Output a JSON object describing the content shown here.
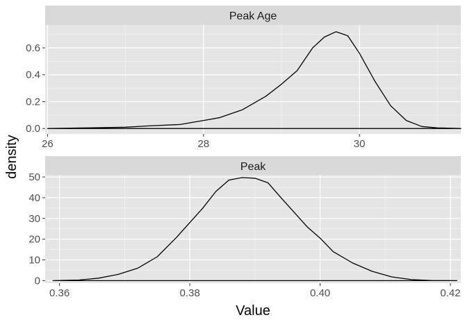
{
  "chart_data": {
    "type": "area",
    "xlabel": "Value",
    "ylabel": "density",
    "facets": [
      {
        "title": "Peak Age",
        "xlim": [
          25.97,
          31.3
        ],
        "ylim": [
          -0.04,
          0.77
        ],
        "x_ticks": [
          26,
          28,
          30
        ],
        "x_tick_labels": [
          "26",
          "28",
          "30"
        ],
        "y_ticks": [
          0.0,
          0.2,
          0.4,
          0.6
        ],
        "y_tick_labels": [
          "0.0",
          "0.2",
          "0.4",
          "0.6"
        ],
        "curve": {
          "x": [
            26.0,
            26.5,
            27.0,
            27.3,
            27.7,
            28.0,
            28.2,
            28.5,
            28.8,
            29.0,
            29.2,
            29.4,
            29.55,
            29.7,
            29.85,
            30.0,
            30.2,
            30.4,
            30.6,
            30.8,
            31.0,
            31.3
          ],
          "y": [
            0.0,
            0.005,
            0.01,
            0.02,
            0.03,
            0.06,
            0.08,
            0.14,
            0.24,
            0.33,
            0.43,
            0.6,
            0.68,
            0.72,
            0.69,
            0.56,
            0.35,
            0.17,
            0.06,
            0.015,
            0.005,
            0.0
          ]
        }
      },
      {
        "title": "Peak",
        "xlim": [
          0.3578,
          0.4216
        ],
        "ylim": [
          -1.2,
          51.0
        ],
        "x_ticks": [
          0.36,
          0.38,
          0.4,
          0.42
        ],
        "x_tick_labels": [
          "0.36",
          "0.38",
          "0.40",
          "0.42"
        ],
        "y_ticks": [
          0,
          10,
          20,
          30,
          40,
          50
        ],
        "y_tick_labels": [
          "0",
          "10",
          "20",
          "30",
          "40",
          "50"
        ],
        "curve": {
          "x": [
            0.359,
            0.363,
            0.366,
            0.369,
            0.372,
            0.375,
            0.378,
            0.38,
            0.382,
            0.384,
            0.386,
            0.388,
            0.39,
            0.392,
            0.394,
            0.396,
            0.398,
            0.4,
            0.402,
            0.405,
            0.408,
            0.411,
            0.414,
            0.417,
            0.421
          ],
          "y": [
            0.0,
            0.3,
            1.2,
            3.0,
            6.0,
            11.5,
            21.0,
            28.0,
            35.0,
            43.0,
            48.5,
            49.7,
            49.4,
            47.2,
            40.0,
            33.0,
            26.0,
            20.5,
            14.0,
            8.5,
            4.5,
            1.8,
            0.5,
            0.1,
            0.0
          ]
        }
      }
    ]
  },
  "colors": {
    "panel_background": "#e5e5e5",
    "grid_major": "#ffffff",
    "strip_background": "#d9d9d9",
    "curve": "#000000"
  }
}
